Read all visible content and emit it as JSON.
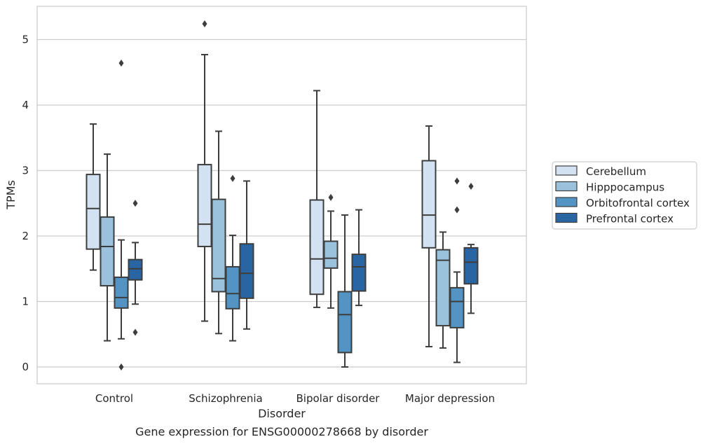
{
  "chart_data": {
    "type": "box",
    "caption": "Gene expression for ENSG00000278668 by disorder",
    "xlabel": "Disorder",
    "ylabel": "TPMs",
    "ylim": [
      -0.25,
      5.5
    ],
    "yticks": [
      0,
      1,
      2,
      3,
      4,
      5
    ],
    "grid": "horizontal",
    "legend_position": "right",
    "categories": [
      "Control",
      "Schizophrenia",
      "Bipolar disorder",
      "Major depression"
    ],
    "series": [
      {
        "name": "Cerebellum",
        "color": "#d2e2f2",
        "boxes": [
          {
            "whislo": 1.48,
            "q1": 1.8,
            "med": 2.42,
            "q3": 2.94,
            "whishi": 3.71,
            "fliers": []
          },
          {
            "whislo": 0.7,
            "q1": 1.84,
            "med": 2.18,
            "q3": 3.09,
            "whishi": 4.77,
            "fliers": [
              5.24
            ]
          },
          {
            "whislo": 0.91,
            "q1": 1.11,
            "med": 1.65,
            "q3": 2.55,
            "whishi": 4.22,
            "fliers": []
          },
          {
            "whislo": 0.31,
            "q1": 1.82,
            "med": 2.32,
            "q3": 3.15,
            "whishi": 3.68,
            "fliers": []
          }
        ]
      },
      {
        "name": "Hipppocampus",
        "color": "#9ac2dc",
        "boxes": [
          {
            "whislo": 0.4,
            "q1": 1.24,
            "med": 1.84,
            "q3": 2.29,
            "whishi": 3.25,
            "fliers": []
          },
          {
            "whislo": 0.51,
            "q1": 1.15,
            "med": 1.35,
            "q3": 2.56,
            "whishi": 3.6,
            "fliers": []
          },
          {
            "whislo": 0.9,
            "q1": 1.51,
            "med": 1.66,
            "q3": 1.92,
            "whishi": 2.38,
            "fliers": [
              2.59
            ]
          },
          {
            "whislo": 0.29,
            "q1": 0.63,
            "med": 1.63,
            "q3": 1.79,
            "whishi": 2.06,
            "fliers": []
          }
        ]
      },
      {
        "name": "Orbitofrontal cortex",
        "color": "#5394c4",
        "boxes": [
          {
            "whislo": 0.43,
            "q1": 0.9,
            "med": 1.06,
            "q3": 1.37,
            "whishi": 1.94,
            "fliers": [
              4.64,
              0.0
            ]
          },
          {
            "whislo": 0.4,
            "q1": 0.89,
            "med": 1.12,
            "q3": 1.53,
            "whishi": 2.01,
            "fliers": [
              2.88
            ]
          },
          {
            "whislo": 0.0,
            "q1": 0.22,
            "med": 0.8,
            "q3": 1.15,
            "whishi": 2.32,
            "fliers": []
          },
          {
            "whislo": 0.07,
            "q1": 0.6,
            "med": 1.0,
            "q3": 1.21,
            "whishi": 1.45,
            "fliers": [
              2.84,
              2.4
            ]
          }
        ]
      },
      {
        "name": "Prefrontal cortex",
        "color": "#2a65a3",
        "boxes": [
          {
            "whislo": 0.96,
            "q1": 1.33,
            "med": 1.5,
            "q3": 1.64,
            "whishi": 1.9,
            "fliers": [
              2.5,
              0.53
            ]
          },
          {
            "whislo": 0.58,
            "q1": 1.05,
            "med": 1.43,
            "q3": 1.88,
            "whishi": 2.84,
            "fliers": []
          },
          {
            "whislo": 0.94,
            "q1": 1.16,
            "med": 1.53,
            "q3": 1.72,
            "whishi": 2.4,
            "fliers": []
          },
          {
            "whislo": 0.82,
            "q1": 1.27,
            "med": 1.6,
            "q3": 1.82,
            "whishi": 1.87,
            "fliers": [
              2.76
            ]
          }
        ]
      }
    ]
  }
}
